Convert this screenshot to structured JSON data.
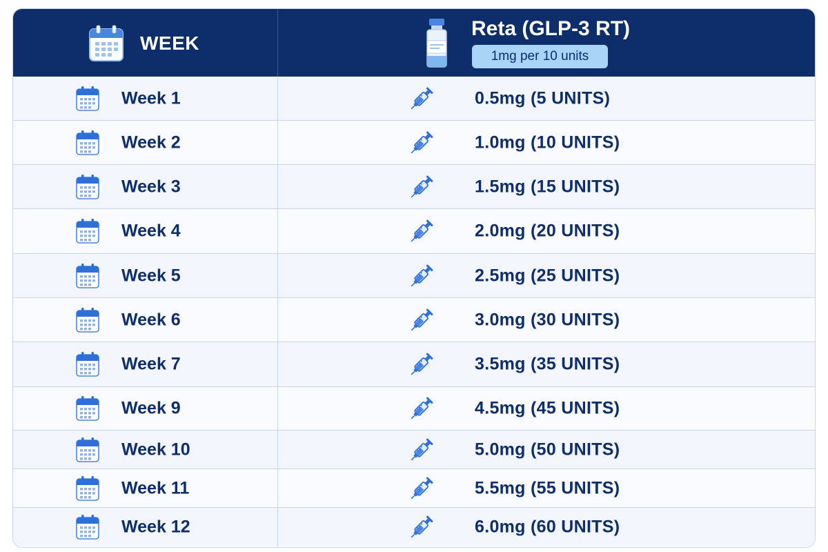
{
  "header": {
    "week_label": "WEEK",
    "product_name": "Reta (GLP-3 RT)",
    "concentration": "1mg per 10 units"
  },
  "colors": {
    "header_bg": "#0e2d6b",
    "badge_bg": "#a9d3f7",
    "text": "#0e2d6b",
    "icon_blue": "#2f6fd8"
  },
  "icons": {
    "header_week": "calendar-icon",
    "header_product": "vial-icon",
    "row_week": "calendar-icon",
    "row_dose": "syringe-icon"
  },
  "rows": [
    {
      "week": "Week 1",
      "dose": "0.5mg (5 UNITS)"
    },
    {
      "week": "Week 2",
      "dose": "1.0mg (10 UNITS)"
    },
    {
      "week": "Week 3",
      "dose": "1.5mg (15 UNITS)"
    },
    {
      "week": "Week 4",
      "dose": "2.0mg (20 UNITS)"
    },
    {
      "week": "Week 5",
      "dose": "2.5mg (25 UNITS)"
    },
    {
      "week": "Week 6",
      "dose": "3.0mg (30 UNITS)"
    },
    {
      "week": "Week 7",
      "dose": "3.5mg (35 UNITS)"
    },
    {
      "week": "Week 9",
      "dose": "4.5mg (45 UNITS)"
    },
    {
      "week": "Week 10",
      "dose": "5.0mg (50 UNITS)"
    },
    {
      "week": "Week 11",
      "dose": "5.5mg (55 UNITS)"
    },
    {
      "week": "Week 12",
      "dose": "6.0mg (60 UNITS)"
    }
  ]
}
